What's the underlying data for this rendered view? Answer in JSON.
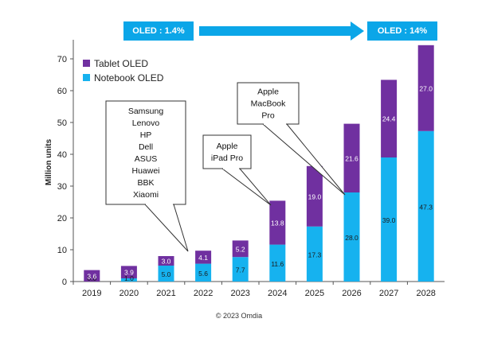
{
  "banner": {
    "left_label": "OLED : 1.4%",
    "right_label": "OLED : 14%"
  },
  "chart_data": {
    "type": "bar",
    "stacked": true,
    "categories": [
      "2019",
      "2020",
      "2021",
      "2022",
      "2023",
      "2024",
      "2025",
      "2026",
      "2027",
      "2028"
    ],
    "series": [
      {
        "name": "Notebook OLED",
        "color": "#16b2ef",
        "values": [
          0.0,
          1.0,
          5.0,
          5.6,
          7.7,
          11.6,
          17.3,
          28.0,
          39.0,
          47.3
        ]
      },
      {
        "name": "Tablet OLED",
        "color": "#7030a0",
        "values": [
          3.6,
          3.9,
          3.0,
          4.1,
          5.2,
          13.8,
          19.0,
          21.6,
          24.4,
          27.0
        ]
      }
    ],
    "ylabel": "Million units",
    "ylim": [
      0,
      75
    ],
    "yticks": [
      0,
      10,
      20,
      30,
      40,
      50,
      60,
      70
    ],
    "grid": false,
    "legend": "top-left",
    "callouts": [
      {
        "lines": [
          "Samsung",
          "Lenovo",
          "HP",
          "Dell",
          "ASUS",
          "Huawei",
          "BBK",
          "Xiaomi"
        ],
        "target_category": "2022"
      },
      {
        "lines": [
          "Apple",
          "iPad Pro"
        ],
        "target_category": "2024"
      },
      {
        "lines": [
          "Apple",
          "MacBook",
          "Pro"
        ],
        "target_category": "2026"
      }
    ]
  },
  "footer": {
    "copyright": "© 2023 Omdia"
  }
}
